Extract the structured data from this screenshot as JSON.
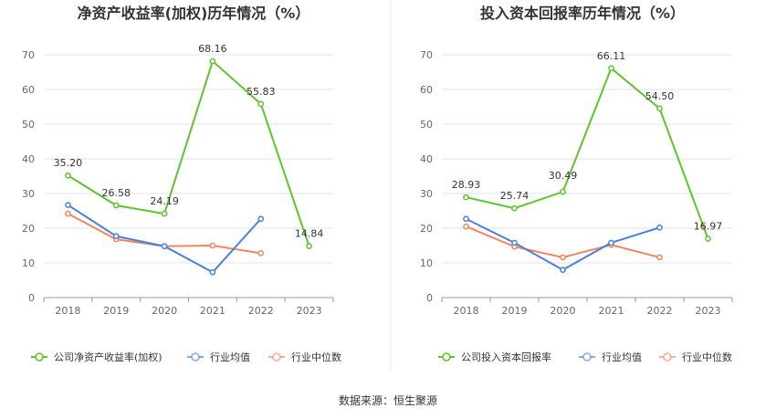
{
  "source_note": "数据来源：恒生聚源",
  "chart_data": [
    {
      "type": "line",
      "title": "净资产收益率(加权)历年情况（%）",
      "categories": [
        "2018",
        "2019",
        "2020",
        "2021",
        "2022",
        "2023"
      ],
      "ylim": [
        0,
        70
      ],
      "yticks": [
        0,
        10,
        20,
        30,
        40,
        50,
        60,
        70
      ],
      "grid": true,
      "legend_position": "bottom",
      "series": [
        {
          "name": "公司净资产收益率(加权)",
          "color": "#5ec42c",
          "values": [
            35.2,
            26.58,
            24.19,
            68.16,
            55.83,
            14.84
          ],
          "labels": [
            "35.20",
            "26.58",
            "24.19",
            "68.16",
            "55.83",
            "14.84"
          ]
        },
        {
          "name": "行业均值",
          "color": "#4a7fdc",
          "values": [
            26.7,
            17.7,
            14.8,
            7.3,
            22.7,
            null
          ]
        },
        {
          "name": "行业中位数",
          "color": "#f2855d",
          "values": [
            24.2,
            16.8,
            14.8,
            15.0,
            12.8,
            null
          ]
        }
      ]
    },
    {
      "type": "line",
      "title": "投入资本回报率历年情况（%）",
      "categories": [
        "2018",
        "2019",
        "2020",
        "2021",
        "2022",
        "2023"
      ],
      "ylim": [
        0,
        70
      ],
      "yticks": [
        0,
        10,
        20,
        30,
        40,
        50,
        60,
        70
      ],
      "grid": true,
      "legend_position": "bottom",
      "series": [
        {
          "name": "公司投入资本回报率",
          "color": "#5ec42c",
          "values": [
            28.93,
            25.74,
            30.49,
            66.11,
            54.5,
            16.97
          ],
          "labels": [
            "28.93",
            "25.74",
            "30.49",
            "66.11",
            "54.50",
            "16.97"
          ]
        },
        {
          "name": "行业均值",
          "color": "#4a7fdc",
          "values": [
            22.7,
            15.8,
            8.0,
            15.8,
            20.2,
            null
          ]
        },
        {
          "name": "行业中位数",
          "color": "#f2855d",
          "values": [
            20.5,
            14.7,
            11.6,
            15.2,
            11.6,
            null
          ]
        }
      ]
    }
  ]
}
